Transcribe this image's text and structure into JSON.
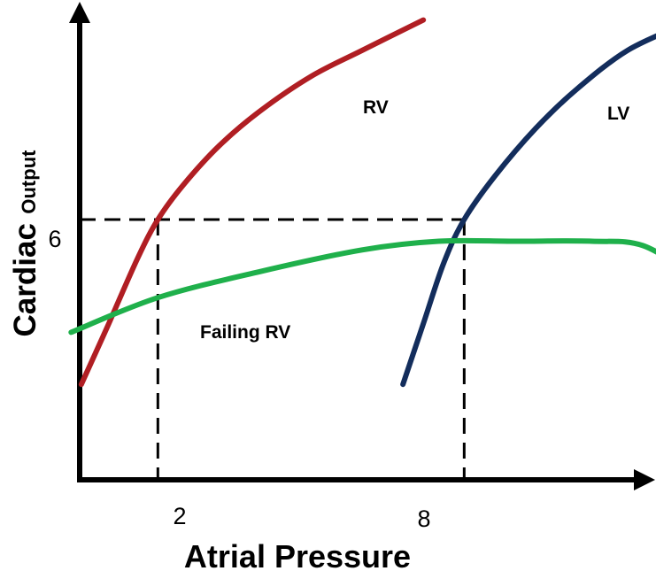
{
  "chart_data": {
    "type": "line",
    "title": "",
    "xlabel": "Atrial Pressure",
    "ylabel": {
      "main": "Cardiac",
      "sub": "Output"
    },
    "xlim": [
      0,
      12
    ],
    "ylim": [
      0,
      10
    ],
    "x_tick_labels": [
      {
        "value": 2,
        "label": "2"
      },
      {
        "value": 8,
        "label": "8"
      }
    ],
    "y_tick_labels": [
      {
        "value": 6,
        "label": "6"
      }
    ],
    "reference_lines": [
      {
        "x": 2,
        "y": 6
      },
      {
        "x": 8,
        "y": 6
      }
    ],
    "grid": false,
    "legend": "none",
    "series": [
      {
        "name": "RV",
        "color": "#b01e23",
        "x": [
          0.5,
          1.0,
          1.6,
          2.0,
          2.5,
          3.2,
          4.0,
          5.0,
          6.0,
          7.2
        ],
        "y": [
          2.2,
          3.5,
          5.1,
          6.0,
          6.8,
          7.7,
          8.5,
          9.3,
          9.9,
          10.6
        ]
      },
      {
        "name": "LV",
        "color": "#132d5c",
        "x": [
          6.8,
          7.2,
          7.6,
          8.0,
          8.6,
          9.4,
          10.2,
          11.2,
          12.3
        ],
        "y": [
          2.2,
          3.6,
          5.0,
          6.0,
          7.0,
          8.1,
          9.0,
          9.9,
          10.5
        ]
      },
      {
        "name": "Failing RV",
        "color": "#1fb04b",
        "x": [
          0.3,
          2.0,
          4.0,
          6.0,
          7.5,
          9.0,
          10.5,
          11.5,
          12.5
        ],
        "y": [
          3.4,
          4.2,
          4.8,
          5.3,
          5.5,
          5.5,
          5.5,
          5.4,
          4.7
        ]
      }
    ]
  }
}
